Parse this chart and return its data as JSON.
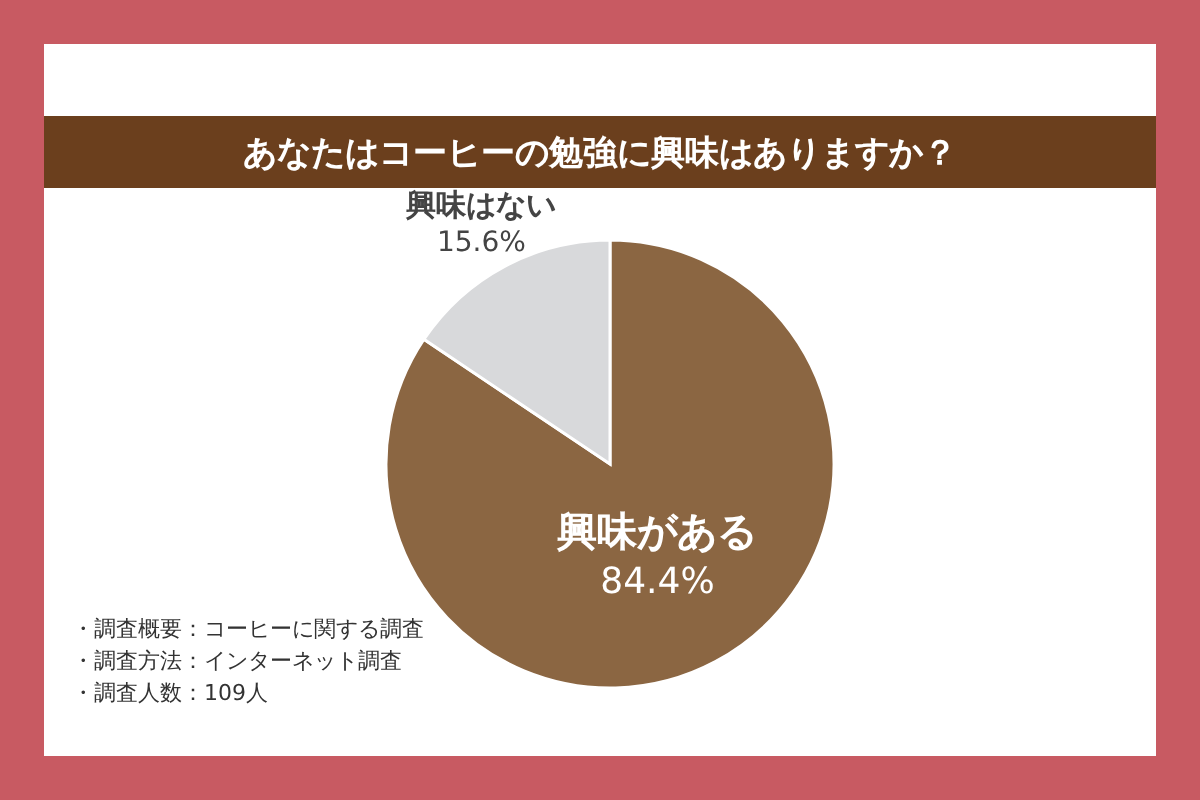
{
  "chart_data": {
    "type": "pie",
    "title": "あなたはコーヒーの勉強に興味はありますか？",
    "categories": [
      "興味がある",
      "興味はない"
    ],
    "values": [
      84.4,
      15.6
    ],
    "colors": [
      "#8b6642",
      "#d8d9db"
    ],
    "value_labels": [
      "84.4%",
      "15.6%"
    ],
    "annotations": [
      "・調査概要：コーヒーに関する調査",
      "・調査方法：インターネット調査",
      "・調査人数：109人"
    ]
  }
}
